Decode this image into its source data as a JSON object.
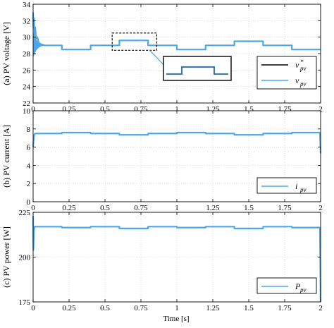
{
  "colors": {
    "signal": "#4da6e8",
    "reference": "#000000",
    "frame": "#000000"
  },
  "x_axis_label": "Time [s]",
  "x_ticks": [
    "0",
    "0.25",
    "0.5",
    "0.75",
    "1",
    "1.25",
    "1.5",
    "1.75",
    "2"
  ],
  "chart_data": [
    {
      "type": "line",
      "ylabel": "(a) PV voltage [V]",
      "xlim": [
        0,
        2
      ],
      "ylim": [
        22,
        34
      ],
      "y_ticks": [
        "22",
        "24",
        "26",
        "28",
        "30",
        "32",
        "34"
      ],
      "grid": true,
      "legend": {
        "placement": "right",
        "entries": [
          {
            "base": "v",
            "sup": "*",
            "sub": "pv",
            "color": "#000000"
          },
          {
            "base": "v",
            "sup": "",
            "sub": "pv",
            "color": "#4da6e8"
          }
        ]
      },
      "series": [
        {
          "name": "v*pv",
          "x": [
            0,
            0.2,
            0.2,
            0.4,
            0.4,
            0.6,
            0.6,
            0.8,
            0.8,
            1.0,
            1.0,
            1.2,
            1.2,
            1.4,
            1.4,
            1.6,
            1.6,
            1.8,
            1.8,
            2.0
          ],
          "y": [
            29.0,
            29.0,
            28.5,
            28.5,
            29.0,
            29.0,
            29.6,
            29.6,
            29.0,
            29.0,
            28.5,
            28.5,
            29.0,
            29.0,
            29.5,
            29.5,
            29.0,
            29.0,
            28.5,
            28.5
          ]
        },
        {
          "name": "vpv",
          "x": [
            0,
            0.002,
            0.006,
            0.01,
            0.015,
            0.02,
            0.03,
            0.04,
            0.06,
            0.08,
            0.2,
            0.2,
            0.4,
            0.4,
            0.6,
            0.6,
            0.8,
            0.8,
            1.0,
            1.0,
            1.2,
            1.2,
            1.4,
            1.4,
            1.6,
            1.6,
            1.8,
            1.8,
            2.0
          ],
          "y": [
            33.0,
            31.2,
            32.3,
            30.2,
            31.2,
            29.8,
            30.0,
            29.3,
            29.1,
            29.0,
            29.0,
            28.5,
            28.5,
            29.0,
            29.0,
            29.6,
            29.6,
            29.0,
            29.0,
            28.5,
            28.5,
            29.0,
            29.0,
            29.5,
            29.5,
            29.0,
            29.0,
            28.5,
            28.5
          ]
        }
      ],
      "annotations": [
        "dashed zoom box around the 0.55-0.85 s step",
        "inset zoom of the step"
      ]
    },
    {
      "type": "line",
      "ylabel": "(b) PV current [A]",
      "xlim": [
        0,
        2
      ],
      "ylim": [
        0,
        10
      ],
      "y_ticks": [
        "0",
        "2",
        "4",
        "6",
        "8",
        "10"
      ],
      "grid": true,
      "legend": {
        "placement": "bottom-right",
        "entries": [
          {
            "base": "i",
            "sup": "",
            "sub": "pv",
            "color": "#4da6e8"
          }
        ]
      },
      "series": [
        {
          "name": "ipv",
          "x": [
            0,
            0.002,
            0.006,
            0.01,
            0.02,
            0.2,
            0.2,
            0.4,
            0.4,
            0.6,
            0.6,
            0.8,
            0.8,
            1.0,
            1.0,
            1.2,
            1.2,
            1.4,
            1.4,
            1.6,
            1.6,
            1.8,
            1.8,
            1.995,
            2.0
          ],
          "y": [
            6.0,
            6.5,
            7.2,
            7.45,
            7.5,
            7.5,
            7.6,
            7.6,
            7.5,
            7.5,
            7.35,
            7.35,
            7.5,
            7.5,
            7.6,
            7.6,
            7.5,
            7.5,
            7.35,
            7.35,
            7.5,
            7.5,
            7.6,
            7.6,
            5.3
          ]
        }
      ]
    },
    {
      "type": "line",
      "ylabel": "(c) PV power [W]",
      "xlim": [
        0,
        2
      ],
      "ylim": [
        175,
        225
      ],
      "y_ticks": [
        "175",
        "200",
        "225"
      ],
      "grid": true,
      "legend": {
        "placement": "bottom-right",
        "entries": [
          {
            "base": "P",
            "sup": "",
            "sub": "pv",
            "color": "#4da6e8"
          }
        ]
      },
      "series": [
        {
          "name": "Ppv",
          "x": [
            0,
            0.002,
            0.006,
            0.01,
            0.02,
            0.2,
            0.2,
            0.4,
            0.4,
            0.6,
            0.6,
            0.8,
            0.8,
            1.0,
            1.0,
            1.2,
            1.2,
            1.4,
            1.4,
            1.6,
            1.6,
            1.8,
            1.8,
            1.995,
            2.0
          ],
          "y": [
            223,
            204,
            215,
            217,
            217,
            217,
            216.5,
            216.5,
            217,
            217,
            216,
            216,
            217,
            217,
            216.5,
            216.5,
            217,
            217,
            216,
            216,
            217,
            217,
            216.5,
            216.5,
            175
          ]
        }
      ]
    }
  ]
}
